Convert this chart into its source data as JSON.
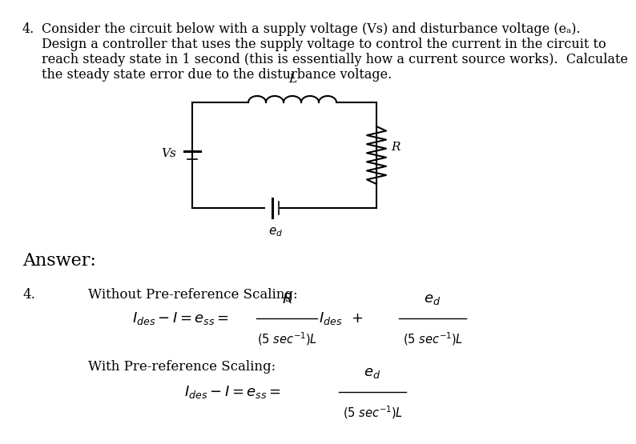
{
  "bg_color": "#ffffff",
  "question_number": "4.",
  "q_line1": "Consider the circuit below with a supply voltage (Vs) and disturbance voltage (eₐ).",
  "q_line2": "Design a controller that uses the supply voltage to control the current in the circuit to",
  "q_line3": "reach steady state in 1 second (this is essentially how a current source works).  Calculate",
  "q_line4": "the steady state error due to the disturbance voltage.",
  "answer_label": "Answer:",
  "answer_number": "4.",
  "section1_title": "Without Pre-reference Scaling:",
  "section2_title": "With Pre-reference Scaling:",
  "circuit_Vs_label": "Vs",
  "circuit_L_label": "L",
  "circuit_R_label": "R",
  "circuit_ed_label": "e_d"
}
